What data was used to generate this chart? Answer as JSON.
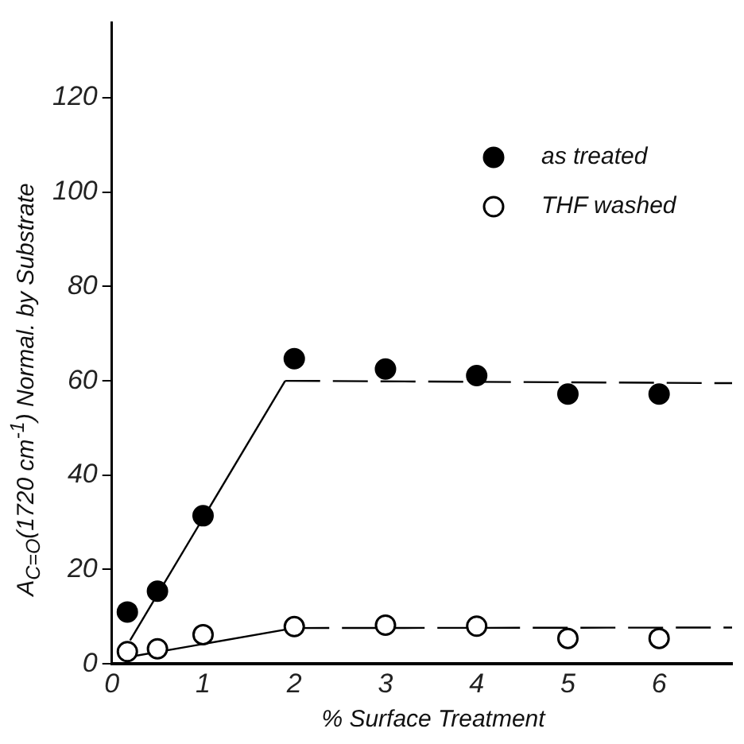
{
  "chart_data": {
    "type": "scatter",
    "xlabel": "% Surface Treatment",
    "ylabel": "A$_{C=O}$(1720 cm$^{-1}$)  Normal. by Substrate",
    "xlim": [
      0,
      6.8
    ],
    "xticks": [
      0,
      1,
      2,
      3,
      4,
      5,
      6
    ],
    "ylim": [
      0,
      136
    ],
    "yticks": [
      0,
      20,
      40,
      60,
      80,
      100,
      120
    ],
    "grid": false,
    "legend": "top right",
    "series": [
      {
        "name": "as treated",
        "color": "#000000",
        "marker": "circle",
        "x": [
          0.17,
          0.5,
          1,
          2,
          3,
          4,
          5,
          6
        ],
        "values": [
          11,
          15.4,
          31.4,
          64.7,
          62.5,
          61.1,
          57.2,
          57.2
        ]
      },
      {
        "name": "THF washed",
        "color": "#ffffff",
        "marker": "circle",
        "x": [
          0.17,
          0.5,
          1,
          2,
          3,
          4,
          5,
          6
        ],
        "values": [
          2.6,
          3.2,
          6.2,
          7.9,
          8.2,
          8,
          5.4,
          5.4
        ]
      },
      {
        "type": "line",
        "color": "#000000",
        "line_style": "solid",
        "x": [
          0.2,
          1.9
        ],
        "values": [
          5,
          60
        ]
      },
      {
        "type": "line",
        "color": "#000000",
        "line_style": "dashed",
        "x": [
          1.9,
          6.8
        ],
        "values": [
          60,
          59.5
        ]
      },
      {
        "type": "line",
        "color": "#000000",
        "line_style": "solid",
        "x": [
          0.2,
          2
        ],
        "values": [
          1.5,
          7.6
        ]
      },
      {
        "type": "line",
        "color": "#000000",
        "line_style": "dashed",
        "x": [
          2,
          6.8
        ],
        "values": [
          7.6,
          7.7
        ]
      }
    ]
  }
}
